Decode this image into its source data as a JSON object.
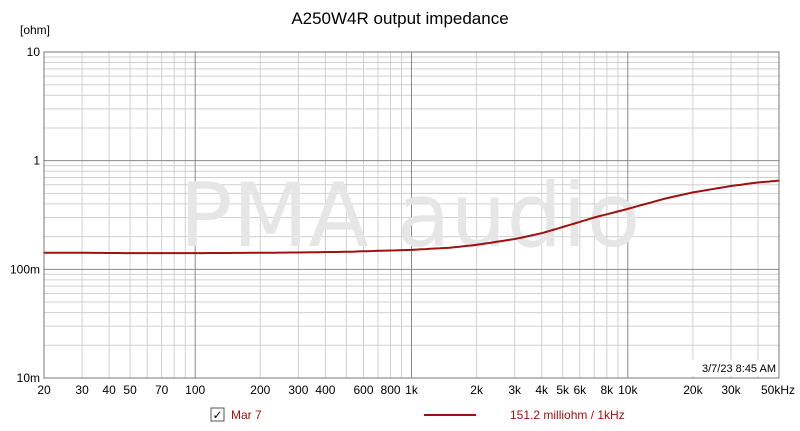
{
  "chart_data": {
    "type": "line",
    "title": "A250W4R output impedance",
    "ylabel": "[ohm]",
    "xlabel": "",
    "x_scale": "log",
    "y_scale": "log",
    "xlim": [
      20,
      50000
    ],
    "ylim": [
      0.01,
      10
    ],
    "x_ticks": [
      20,
      30,
      40,
      50,
      70,
      100,
      200,
      300,
      400,
      600,
      800,
      1000,
      2000,
      3000,
      4000,
      5000,
      6000,
      8000,
      10000,
      20000,
      30000,
      50000
    ],
    "x_tick_labels": [
      "20",
      "30",
      "40",
      "50",
      "70",
      "100",
      "200",
      "300",
      "400",
      "600",
      "800",
      "1k",
      "2k",
      "3k",
      "4k",
      "5k",
      "6k",
      "8k",
      "10k",
      "20k",
      "30k",
      "50kHz"
    ],
    "y_ticks": [
      10,
      1,
      0.1,
      0.01
    ],
    "y_tick_labels": [
      "10",
      "1",
      "100m",
      "10m"
    ],
    "grid": true,
    "watermark": "PMA audio",
    "timestamp": "3/7/23 8:45 AM",
    "series": [
      {
        "name": "Mar 7",
        "color": "#a01010",
        "checked": true,
        "value_label": "151.2  milliohm / 1kHz",
        "x": [
          20,
          30,
          50,
          70,
          100,
          200,
          300,
          500,
          700,
          1000,
          1500,
          2000,
          3000,
          4000,
          5000,
          7000,
          10000,
          15000,
          20000,
          30000,
          40000,
          50000
        ],
        "y": [
          0.142,
          0.142,
          0.141,
          0.141,
          0.141,
          0.142,
          0.143,
          0.145,
          0.148,
          0.151,
          0.158,
          0.168,
          0.19,
          0.215,
          0.245,
          0.3,
          0.36,
          0.45,
          0.51,
          0.585,
          0.63,
          0.655
        ]
      }
    ]
  },
  "checkbox_mark": "✓"
}
